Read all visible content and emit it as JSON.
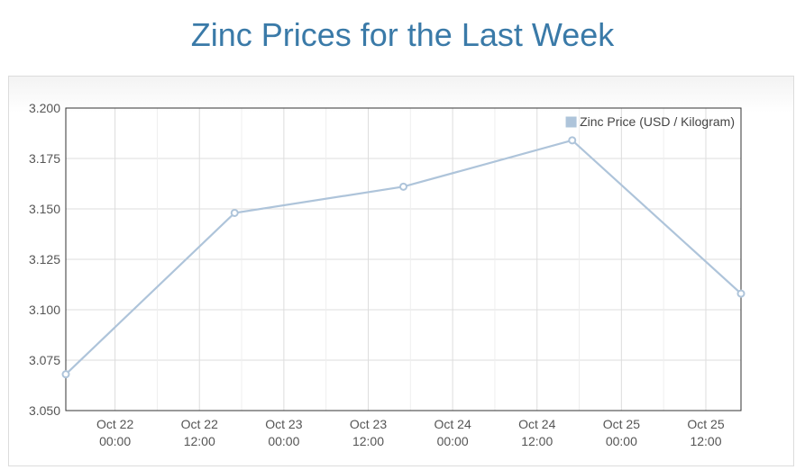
{
  "page": {
    "title": "Zinc Prices for the Last Week"
  },
  "chart_data": {
    "type": "line",
    "title": "Zinc Prices for the Last Week",
    "xlabel": "",
    "ylabel": "",
    "ylim": [
      3.05,
      3.2
    ],
    "y_ticks": [
      "3.200",
      "3.175",
      "3.150",
      "3.125",
      "3.100",
      "3.075",
      "3.050"
    ],
    "y_tick_values": [
      3.2,
      3.175,
      3.15,
      3.125,
      3.1,
      3.075,
      3.05
    ],
    "x_ticks": [
      {
        "date": "Oct 22",
        "time": "00:00",
        "hour": 24
      },
      {
        "date": "Oct 22",
        "time": "12:00",
        "hour": 36
      },
      {
        "date": "Oct 23",
        "time": "00:00",
        "hour": 48
      },
      {
        "date": "Oct 23",
        "time": "12:00",
        "hour": 60
      },
      {
        "date": "Oct 24",
        "time": "00:00",
        "hour": 72
      },
      {
        "date": "Oct 24",
        "time": "12:00",
        "hour": 84
      },
      {
        "date": "Oct 25",
        "time": "00:00",
        "hour": 96
      },
      {
        "date": "Oct 25",
        "time": "12:00",
        "hour": 108
      }
    ],
    "x_minor_grid_hours": [
      30,
      42,
      54,
      66,
      78,
      90,
      102
    ],
    "xlim_hours": [
      17,
      113
    ],
    "grid": true,
    "legend_position": "top-right",
    "series": [
      {
        "name": "Zinc Price (USD / Kilogram)",
        "color": "#aec4da",
        "points": [
          {
            "hour": 17,
            "y": 3.068
          },
          {
            "hour": 41,
            "y": 3.148
          },
          {
            "hour": 65,
            "y": 3.161
          },
          {
            "hour": 89,
            "y": 3.184
          },
          {
            "hour": 113,
            "y": 3.108
          }
        ]
      }
    ]
  }
}
